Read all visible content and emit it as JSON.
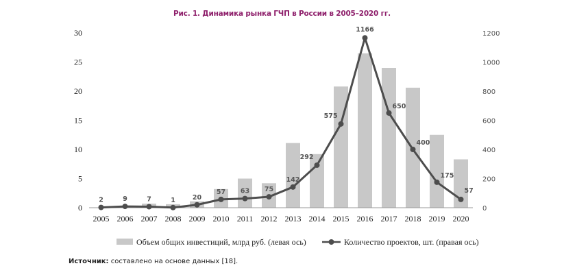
{
  "title": "Рис. 1. Динамика рынка ГЧП в России в 2005–2020 гг.",
  "source": {
    "label": "Источник:",
    "text": "составлено на основе данных [18]."
  },
  "chart_data": {
    "type": "bar",
    "categories": [
      "2005",
      "2006",
      "2007",
      "2008",
      "2009",
      "2010",
      "2011",
      "2012",
      "2013",
      "2014",
      "2015",
      "2016",
      "2017",
      "2018",
      "2019",
      "2020"
    ],
    "series": [
      {
        "name": "Объем общих инвестиций, млрд руб. (левая ось)",
        "type": "bar",
        "axis": "left",
        "color": "#c8c8c8",
        "values": [
          0.05,
          0.2,
          0.7,
          0.6,
          1.1,
          3.2,
          5.0,
          4.2,
          11.1,
          9.2,
          20.8,
          26.5,
          24.0,
          20.6,
          12.5,
          8.3
        ]
      },
      {
        "name": "Количество проектов, шт. (правая ось)",
        "type": "line",
        "axis": "right",
        "color": "#4d4d4d",
        "values": [
          2,
          9,
          7,
          1,
          20,
          57,
          63,
          75,
          142,
          292,
          575,
          1166,
          650,
          400,
          175,
          57
        ],
        "labels": [
          "2",
          "9",
          "7",
          "1",
          "20",
          "57",
          "63",
          "75",
          "142",
          "292",
          "575",
          "1166",
          "650",
          "400",
          "175",
          "57"
        ]
      }
    ],
    "ylim_left": [
      0,
      30
    ],
    "yticks_left": [
      "0",
      "5",
      "10",
      "15",
      "20",
      "25",
      "30"
    ],
    "ylim_right": [
      0,
      1200
    ],
    "yticks_right": [
      "0",
      "200",
      "400",
      "600",
      "800",
      "1000",
      "1200"
    ],
    "grid": false,
    "legend_position": "bottom"
  }
}
